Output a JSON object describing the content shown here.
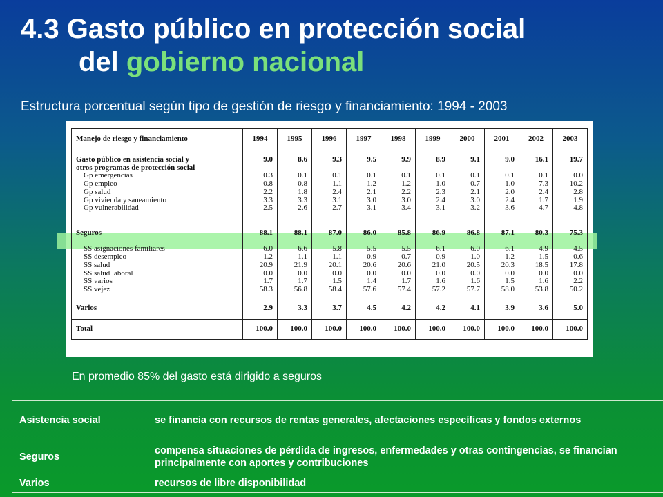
{
  "title": {
    "line1": "4.3 Gasto público en protección social",
    "line2_prefix": "del",
    "line2_highlight": "gobierno nacional"
  },
  "subtitle": "Estructura porcentual según tipo de gestión de riesgo y financiamiento:  1994 - 2003",
  "table": {
    "header_label": "Manejo de riesgo y financiamiento",
    "years": [
      "1994",
      "1995",
      "1996",
      "1997",
      "1998",
      "1999",
      "2000",
      "2001",
      "2002",
      "2003"
    ],
    "group1": {
      "label_line1": "Gasto público en asistencia social y",
      "label_line2": "otros programas de protección social",
      "items": [
        "Gp emergencias",
        "Gp empleo",
        "Gp salud",
        "Gp vivienda y saneamiento",
        "Gp vulnerabilidad"
      ],
      "total": [
        "9.0",
        "8.6",
        "9.3",
        "9.5",
        "9.9",
        "8.9",
        "9.1",
        "9.0",
        "16.1",
        "19.7"
      ],
      "values": [
        [
          "0.3",
          "0.8",
          "2.2",
          "3.3",
          "2.5"
        ],
        [
          "0.1",
          "0.8",
          "1.8",
          "3.3",
          "2.6"
        ],
        [
          "0.1",
          "1.1",
          "2.4",
          "3.1",
          "2.7"
        ],
        [
          "0.1",
          "1.2",
          "2.1",
          "3.0",
          "3.1"
        ],
        [
          "0.1",
          "1.2",
          "2.2",
          "3.0",
          "3.4"
        ],
        [
          "0.1",
          "1.0",
          "2.3",
          "2.4",
          "3.1"
        ],
        [
          "0.1",
          "0.7",
          "2.1",
          "3.0",
          "3.2"
        ],
        [
          "0.1",
          "1.0",
          "2.0",
          "2.4",
          "3.6"
        ],
        [
          "0.1",
          "7.3",
          "2.4",
          "1.7",
          "4.7"
        ],
        [
          "0.0",
          "10.2",
          "2.8",
          "1.9",
          "4.8"
        ]
      ]
    },
    "group2": {
      "label": "Seguros",
      "items": [
        "SS asignaciones familiares",
        "SS desempleo",
        "SS salud",
        "SS salud laboral",
        "SS varios",
        "SS vejez"
      ],
      "total": [
        "88.1",
        "88.1",
        "87.0",
        "86.0",
        "85.8",
        "86.9",
        "86.8",
        "87.1",
        "80.3",
        "75.3"
      ],
      "values": [
        [
          "6.0",
          "1.2",
          "20.9",
          "0.0",
          "1.7",
          "58.3"
        ],
        [
          "6.6",
          "1.1",
          "21.9",
          "0.0",
          "1.7",
          "56.8"
        ],
        [
          "5.8",
          "1.1",
          "20.1",
          "0.0",
          "1.5",
          "58.4"
        ],
        [
          "5.5",
          "0.9",
          "20.6",
          "0.0",
          "1.4",
          "57.6"
        ],
        [
          "5.5",
          "0.7",
          "20.6",
          "0.0",
          "1.7",
          "57.4"
        ],
        [
          "6.1",
          "0.9",
          "21.0",
          "0.0",
          "1.6",
          "57.2"
        ],
        [
          "6.0",
          "1.0",
          "20.5",
          "0.0",
          "1.6",
          "57.7"
        ],
        [
          "6.1",
          "1.2",
          "20.3",
          "0.0",
          "1.5",
          "58.0"
        ],
        [
          "4.9",
          "1.5",
          "18.5",
          "0.0",
          "1.6",
          "53.8"
        ],
        [
          "4.5",
          "0.6",
          "17.8",
          "0.0",
          "2.2",
          "50.2"
        ]
      ]
    },
    "varios": {
      "label": "Varios",
      "values": [
        "2.9",
        "3.3",
        "3.7",
        "4.5",
        "4.2",
        "4.2",
        "4.1",
        "3.9",
        "3.6",
        "5.0"
      ]
    },
    "total": {
      "label": "Total",
      "values": [
        "100.0",
        "100.0",
        "100.0",
        "100.0",
        "100.0",
        "100.0",
        "100.0",
        "100.0",
        "100.0",
        "100.0"
      ]
    }
  },
  "note": "En promedio 85% del gasto está dirigido a seguros",
  "definitions": [
    {
      "term": "Asistencia social",
      "desc": "se financia con recursos de rentas generales, afectaciones específicas y fondos externos"
    },
    {
      "term": "Seguros",
      "desc": "compensa situaciones de pérdida de ingresos, enfermedades y otras contingencias, se financian principalmente con aportes y contribuciones"
    },
    {
      "term": "Varios",
      "desc": "recursos de libre disponibilidad"
    }
  ]
}
